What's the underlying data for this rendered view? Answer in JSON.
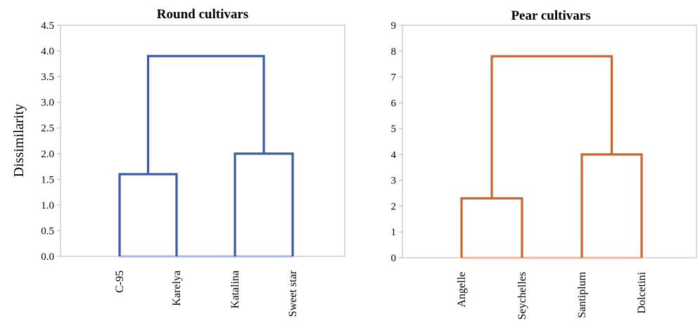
{
  "chart_data": [
    {
      "type": "dendrogram",
      "title": "Round cultivars",
      "ylabel": "Dissimilarity",
      "xlabel": "",
      "ylim": [
        0,
        4.5
      ],
      "yticks": [
        "0.0",
        "0.5",
        "1.0",
        "1.5",
        "2.0",
        "2.5",
        "3.0",
        "3.5",
        "4.0",
        "4.5"
      ],
      "leaves": [
        "C-95",
        "Karelya",
        "Katalina",
        "Sweet star"
      ],
      "merges": [
        {
          "left": "C-95",
          "right": "Karelya",
          "height": 1.6
        },
        {
          "left": "Katalina",
          "right": "Sweet star",
          "height": 2.0
        },
        {
          "left": "cluster(C-95,Karelya)",
          "right": "cluster(Katalina,Sweet star)",
          "height": 3.9
        }
      ],
      "color": "#3A5BA8",
      "baseline_color": "#A9B8E4",
      "grid": false
    },
    {
      "type": "dendrogram",
      "title": "Pear cultivars",
      "ylabel": "",
      "xlabel": "",
      "ylim": [
        0,
        9
      ],
      "yticks": [
        "0",
        "1",
        "2",
        "3",
        "4",
        "5",
        "6",
        "7",
        "8",
        "9"
      ],
      "leaves": [
        "Angelle",
        "Seychelles",
        "Santiplum",
        "Dolcetini"
      ],
      "merges": [
        {
          "left": "Angelle",
          "right": "Seychelles",
          "height": 2.3
        },
        {
          "left": "Santiplum",
          "right": "Dolcetini",
          "height": 4.0
        },
        {
          "left": "cluster(Angelle,Seychelles)",
          "right": "cluster(Santiplum,Dolcetini)",
          "height": 7.8
        }
      ],
      "color": "#C8662F",
      "baseline_color": "#F2B89E",
      "grid": false
    }
  ]
}
